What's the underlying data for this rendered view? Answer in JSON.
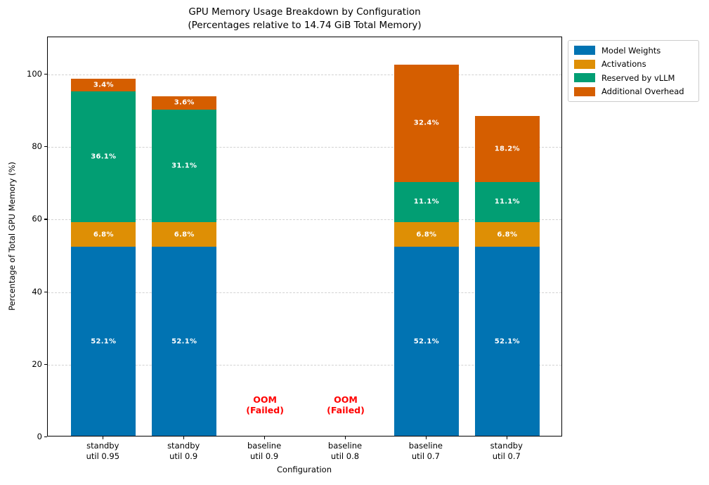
{
  "chart_data": {
    "type": "bar",
    "stacked": true,
    "title": "GPU Memory Usage Breakdown by Configuration",
    "subtitle": "(Percentages relative to 14.74 GiB Total Memory)",
    "xlabel": "Configuration",
    "ylabel": "Percentage of Total GPU Memory (%)",
    "ylim": [
      0,
      110
    ],
    "yticks": [
      0,
      20,
      40,
      60,
      80,
      100
    ],
    "grid": {
      "axis": "y",
      "style": "dashed",
      "color": "#d2d2d2"
    },
    "legend_position": "upper-right-outside",
    "categories": [
      "standby\nutil 0.95",
      "standby\nutil 0.9",
      "baseline\nutil 0.9",
      "baseline\nutil 0.8",
      "baseline\nutil 0.7",
      "standby\nutil 0.7"
    ],
    "series": [
      {
        "name": "Model Weights",
        "color": "#0173b2",
        "values": [
          52.1,
          52.1,
          null,
          null,
          52.1,
          52.1
        ]
      },
      {
        "name": "Activations",
        "color": "#de8f05",
        "values": [
          6.8,
          6.8,
          null,
          null,
          6.8,
          6.8
        ]
      },
      {
        "name": "Reserved by vLLM",
        "color": "#029e73",
        "values": [
          36.1,
          31.1,
          null,
          null,
          11.1,
          11.1
        ]
      },
      {
        "name": "Additional Overhead",
        "color": "#d55e00",
        "values": [
          3.4,
          3.6,
          null,
          null,
          32.4,
          18.2
        ]
      }
    ],
    "bar_totals": [
      98.4,
      93.6,
      null,
      null,
      102.4,
      88.2
    ],
    "annotations": [
      {
        "category_index": 2,
        "text": "OOM\n(Failed)",
        "color": "#ff0000"
      },
      {
        "category_index": 3,
        "text": "OOM\n(Failed)",
        "color": "#ff0000"
      }
    ],
    "segment_label_suffix": "%"
  }
}
